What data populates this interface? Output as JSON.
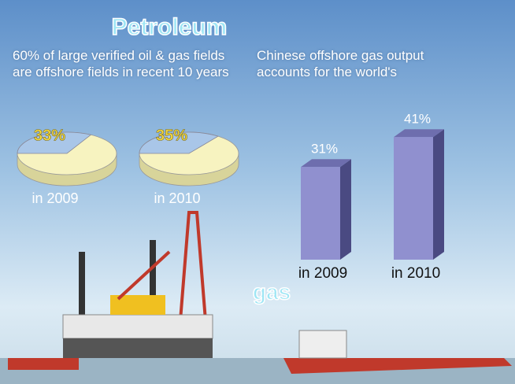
{
  "chart_data": [
    {
      "type": "pie",
      "title": "Petroleum",
      "subtitle": "60% of large verified oil & gas fields are offshore fields in recent 10 years",
      "categories": [
        "in 2009",
        "in 2010"
      ],
      "values": [
        33,
        35
      ],
      "value_labels": [
        "33%",
        "35%"
      ],
      "color": "#a9c6e8"
    },
    {
      "type": "bar",
      "title": "gas",
      "subtitle": "Chinese offshore gas output accounts for the world's",
      "categories": [
        "in 2009",
        "in 2010"
      ],
      "values": [
        31,
        41
      ],
      "value_labels": [
        "31%",
        "41%"
      ],
      "color": "#9090cf"
    }
  ]
}
